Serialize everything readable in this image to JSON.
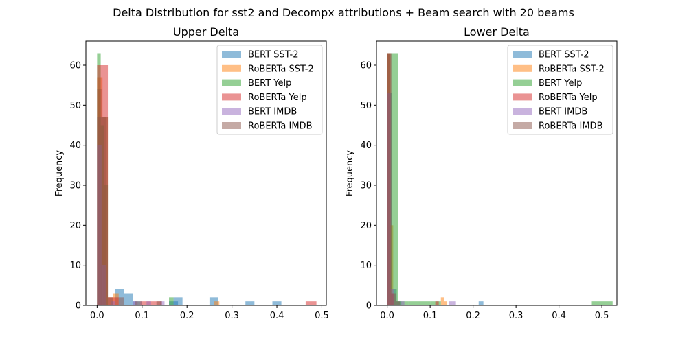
{
  "figure_title": "Delta Distribution for sst2 and Decompx attributions + Beam search with 20 beams",
  "chart_data": [
    {
      "type": "histogram",
      "title": "Upper Delta",
      "xlabel": "",
      "ylabel": "Frequency",
      "xlim": [
        -0.025,
        0.51
      ],
      "ylim": [
        0,
        66
      ],
      "xticks": [
        0.0,
        0.1,
        0.2,
        0.3,
        0.4,
        0.5
      ],
      "yticks": [
        0,
        10,
        20,
        30,
        40,
        50,
        60
      ],
      "legend_position": "top-right",
      "series": [
        {
          "name": "BERT SST-2",
          "color": "#1f77b4",
          "bins": [
            [
              0.0,
              0.01,
              54
            ],
            [
              0.01,
              0.02,
              47
            ],
            [
              0.04,
              0.06,
              4
            ],
            [
              0.06,
              0.08,
              3
            ],
            [
              0.08,
              0.1,
              1
            ],
            [
              0.16,
              0.18,
              1
            ],
            [
              0.17,
              0.19,
              2
            ],
            [
              0.25,
              0.27,
              2
            ],
            [
              0.33,
              0.35,
              1
            ],
            [
              0.39,
              0.41,
              1
            ]
          ]
        },
        {
          "name": "RoBERTa SST-2",
          "color": "#ff7f0e",
          "bins": [
            [
              0.0,
              0.012,
              57
            ],
            [
              0.012,
              0.024,
              47
            ],
            [
              0.024,
              0.036,
              2
            ],
            [
              0.036,
              0.048,
              3
            ],
            [
              0.26,
              0.272,
              1
            ]
          ]
        },
        {
          "name": "BERT Yelp",
          "color": "#2ca02c",
          "bins": [
            [
              0.0,
              0.008,
              63
            ],
            [
              0.008,
              0.016,
              45
            ],
            [
              0.016,
              0.024,
              30
            ],
            [
              0.16,
              0.17,
              2
            ]
          ]
        },
        {
          "name": "RoBERTa Yelp",
          "color": "#d62728",
          "bins": [
            [
              0.0,
              0.024,
              60
            ],
            [
              0.024,
              0.048,
              2
            ],
            [
              0.096,
              0.12,
              1
            ],
            [
              0.12,
              0.144,
              1
            ],
            [
              0.464,
              0.488,
              1
            ]
          ]
        },
        {
          "name": "BERT IMDB",
          "color": "#9467bd",
          "bins": [
            [
              0.0,
              0.01,
              40
            ],
            [
              0.01,
              0.02,
              10
            ],
            [
              0.03,
              0.04,
              1
            ],
            [
              0.08,
              0.09,
              1
            ],
            [
              0.11,
              0.12,
              1
            ],
            [
              0.14,
              0.15,
              1
            ]
          ]
        },
        {
          "name": "RoBERTa IMDB",
          "color": "#8c564b",
          "bins": [
            [
              0.0,
              0.012,
              47
            ],
            [
              0.012,
              0.024,
              47
            ],
            [
              0.024,
              0.036,
              2
            ],
            [
              0.048,
              0.06,
              2
            ],
            [
              0.084,
              0.096,
              1
            ],
            [
              0.132,
              0.144,
              1
            ]
          ]
        }
      ]
    },
    {
      "type": "histogram",
      "title": "Lower Delta",
      "xlabel": "",
      "ylabel": "Frequency",
      "xlim": [
        -0.025,
        0.535
      ],
      "ylim": [
        0,
        66
      ],
      "xticks": [
        0.0,
        0.1,
        0.2,
        0.3,
        0.4,
        0.5
      ],
      "yticks": [
        0,
        10,
        20,
        30,
        40,
        50,
        60
      ],
      "legend_position": "top-right",
      "series": [
        {
          "name": "BERT SST-2",
          "color": "#1f77b4",
          "bins": [
            [
              0.0,
              0.011,
              53
            ],
            [
              0.011,
              0.022,
              4
            ],
            [
              0.022,
              0.033,
              1
            ],
            [
              0.213,
              0.224,
              1
            ]
          ]
        },
        {
          "name": "RoBERTa SST-2",
          "color": "#ff7f0e",
          "bins": [
            [
              0.0,
              0.007,
              63
            ],
            [
              0.007,
              0.014,
              20
            ],
            [
              0.125,
              0.132,
              2
            ],
            [
              0.132,
              0.139,
              1
            ]
          ]
        },
        {
          "name": "BERT Yelp",
          "color": "#2ca02c",
          "bins": [
            [
              0.0,
              0.025,
              63
            ],
            [
              0.025,
              0.05,
              1
            ],
            [
              0.05,
              0.075,
              1
            ],
            [
              0.075,
              0.1,
              1
            ],
            [
              0.1,
              0.125,
              1
            ],
            [
              0.475,
              0.5,
              1
            ],
            [
              0.5,
              0.525,
              1
            ]
          ]
        },
        {
          "name": "RoBERTa Yelp",
          "color": "#d62728",
          "bins": [
            [
              0.0,
              0.008,
              63
            ],
            [
              0.008,
              0.016,
              3
            ],
            [
              0.112,
              0.12,
              1
            ]
          ]
        },
        {
          "name": "BERT IMDB",
          "color": "#9467bd",
          "bins": [
            [
              0.0,
              0.008,
              53
            ],
            [
              0.008,
              0.016,
              4
            ],
            [
              0.032,
              0.04,
              1
            ],
            [
              0.144,
              0.152,
              1
            ],
            [
              0.152,
              0.16,
              1
            ]
          ]
        },
        {
          "name": "RoBERTa IMDB",
          "color": "#8c564b",
          "bins": [
            [
              0.0,
              0.01,
              63
            ],
            [
              0.01,
              0.02,
              3
            ],
            [
              0.02,
              0.03,
              1
            ]
          ]
        }
      ]
    }
  ]
}
